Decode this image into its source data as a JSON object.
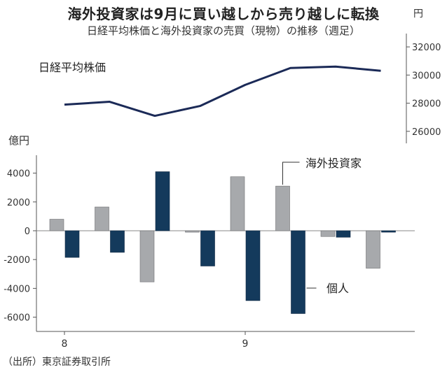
{
  "title": "海外投資家は9月に買い越しから売り越しに転換",
  "subtitle": "日経平均株価と海外投資家の売買（現物）の推移（週足）",
  "source": "（出所）東京証券取引所",
  "colors": {
    "line": "#1b2a57",
    "foreign": "#a7a9ac",
    "individual": "#143a5c",
    "axis": "#555555",
    "grid": "#bbbbbb"
  },
  "chart_data": [
    {
      "type": "line",
      "name": "nikkei",
      "series": [
        {
          "name": "日経平均株価",
          "values": [
            27900,
            28100,
            27100,
            27800,
            29300,
            30500,
            30600,
            30300
          ]
        }
      ],
      "unit_label": "円",
      "yticks": [
        26000,
        28000,
        30000,
        32000
      ],
      "ylim": [
        24500,
        32600
      ],
      "grid": false
    },
    {
      "type": "bar",
      "name": "trading",
      "unit_label": "億円",
      "month_labels": [
        {
          "label": "8",
          "week": 0
        },
        {
          "label": "9",
          "week": 4
        }
      ],
      "series": [
        {
          "name": "海外投資家",
          "values": [
            800,
            1650,
            -3550,
            -100,
            3750,
            3100,
            -400,
            -2600
          ]
        },
        {
          "name": "個人",
          "values": [
            -1850,
            -1500,
            4100,
            -2450,
            -4850,
            -5750,
            -450,
            -100
          ]
        }
      ],
      "yticks": [
        4000,
        2000,
        0,
        -2000,
        -4000,
        -6000
      ],
      "ylim": [
        -6400,
        5200
      ],
      "grid": false
    }
  ]
}
